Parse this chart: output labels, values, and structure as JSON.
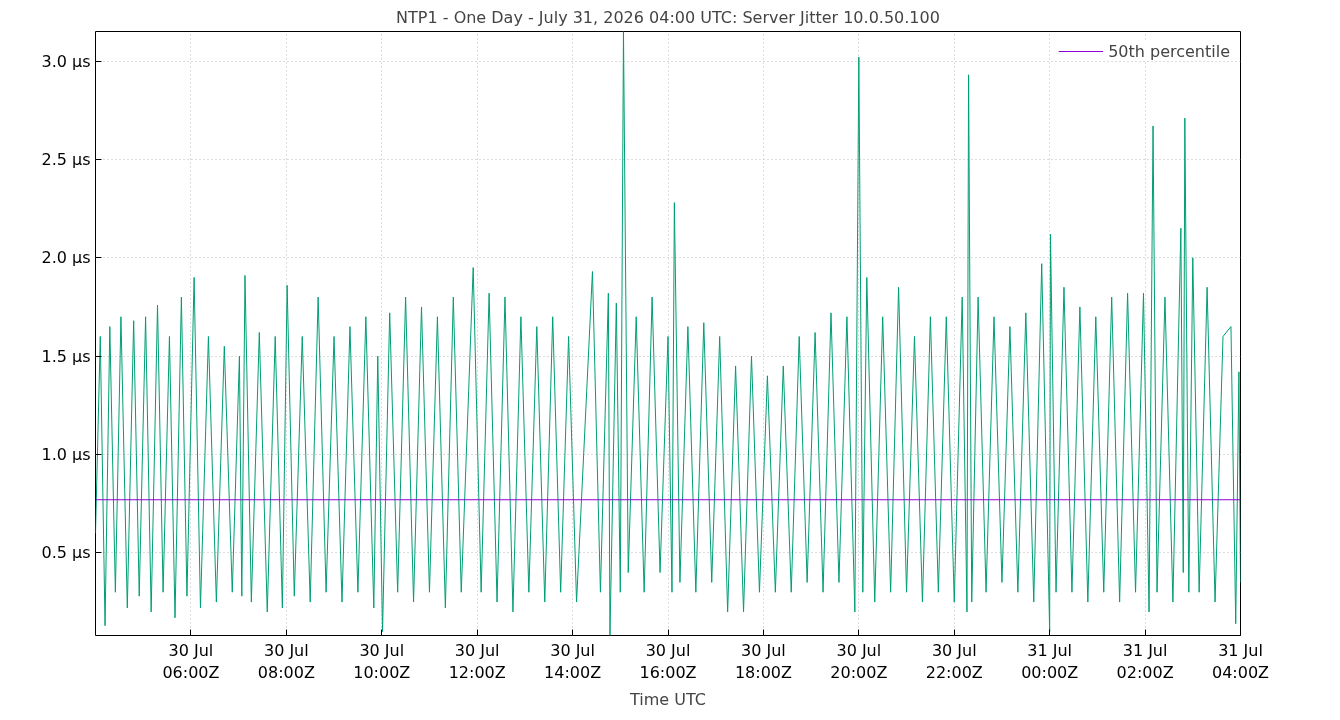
{
  "chart_data": {
    "type": "line",
    "title": "NTP1 - One Day - July 31, 2026 04:00 UTC: Server Jitter 10.0.50.100",
    "xlabel": "Time UTC",
    "xlim": [
      "2026-07-30T04:00",
      "2026-07-31T04:00"
    ],
    "xticks": [
      {
        "value": "2026-07-30T06:00",
        "label": "30 Jul\n06:00Z"
      },
      {
        "value": "2026-07-30T08:00",
        "label": "30 Jul\n08:00Z"
      },
      {
        "value": "2026-07-30T10:00",
        "label": "30 Jul\n10:00Z"
      },
      {
        "value": "2026-07-30T12:00",
        "label": "30 Jul\n12:00Z"
      },
      {
        "value": "2026-07-30T14:00",
        "label": "30 Jul\n14:00Z"
      },
      {
        "value": "2026-07-30T16:00",
        "label": "30 Jul\n16:00Z"
      },
      {
        "value": "2026-07-30T18:00",
        "label": "30 Jul\n18:00Z"
      },
      {
        "value": "2026-07-30T20:00",
        "label": "30 Jul\n20:00Z"
      },
      {
        "value": "2026-07-30T22:00",
        "label": "30 Jul\n22:00Z"
      },
      {
        "value": "2026-07-31T00:00",
        "label": "31 Jul\n00:00Z"
      },
      {
        "value": "2026-07-31T02:00",
        "label": "31 Jul\n02:00Z"
      },
      {
        "value": "2026-07-31T04:00",
        "label": "31 Jul\n04:00Z"
      }
    ],
    "ylim": [
      0.08,
      3.15
    ],
    "yticks": [
      {
        "value": 0.5,
        "label": "0.5 µs"
      },
      {
        "value": 1.0,
        "label": "1.0 µs"
      },
      {
        "value": 1.5,
        "label": "1.5 µs"
      },
      {
        "value": 2.0,
        "label": "2.0 µs"
      },
      {
        "value": 2.5,
        "label": "2.5 µs"
      },
      {
        "value": 3.0,
        "label": "3.0 µs"
      }
    ],
    "grid": true,
    "legend": "top right",
    "line_style": "solid",
    "series": [
      {
        "color": "#009e73",
        "x": [
          "2026-07-30T04:00",
          "2026-07-30T04:06",
          "2026-07-30T04:12",
          "2026-07-30T04:18",
          "2026-07-30T04:25",
          "2026-07-30T04:32",
          "2026-07-30T04:40",
          "2026-07-30T04:48",
          "2026-07-30T04:55",
          "2026-07-30T05:03",
          "2026-07-30T05:10",
          "2026-07-30T05:18",
          "2026-07-30T05:25",
          "2026-07-30T05:33",
          "2026-07-30T05:40",
          "2026-07-30T05:48",
          "2026-07-30T05:55",
          "2026-07-30T06:04",
          "2026-07-30T06:12",
          "2026-07-30T06:22",
          "2026-07-30T06:32",
          "2026-07-30T06:42",
          "2026-07-30T06:52",
          "2026-07-30T07:01",
          "2026-07-30T07:04",
          "2026-07-30T07:08",
          "2026-07-30T07:16",
          "2026-07-30T07:26",
          "2026-07-30T07:36",
          "2026-07-30T07:46",
          "2026-07-30T07:55",
          "2026-07-30T08:01",
          "2026-07-30T08:10",
          "2026-07-30T08:20",
          "2026-07-30T08:30",
          "2026-07-30T08:40",
          "2026-07-30T08:50",
          "2026-07-30T09:00",
          "2026-07-30T09:10",
          "2026-07-30T09:20",
          "2026-07-30T09:30",
          "2026-07-30T09:40",
          "2026-07-30T09:50",
          "2026-07-30T09:55",
          "2026-07-30T10:01",
          "2026-07-30T10:10",
          "2026-07-30T10:20",
          "2026-07-30T10:30",
          "2026-07-30T10:40",
          "2026-07-30T10:50",
          "2026-07-30T11:00",
          "2026-07-30T11:10",
          "2026-07-30T11:20",
          "2026-07-30T11:30",
          "2026-07-30T11:40",
          "2026-07-30T11:55",
          "2026-07-30T12:05",
          "2026-07-30T12:15",
          "2026-07-30T12:25",
          "2026-07-30T12:35",
          "2026-07-30T12:45",
          "2026-07-30T12:55",
          "2026-07-30T13:05",
          "2026-07-30T13:15",
          "2026-07-30T13:25",
          "2026-07-30T13:35",
          "2026-07-30T13:45",
          "2026-07-30T13:55",
          "2026-07-30T14:05",
          "2026-07-30T14:25",
          "2026-07-30T14:35",
          "2026-07-30T14:45",
          "2026-07-30T14:47",
          "2026-07-30T14:55",
          "2026-07-30T15:00",
          "2026-07-30T15:04",
          "2026-07-30T15:10",
          "2026-07-30T15:20",
          "2026-07-30T15:30",
          "2026-07-30T15:40",
          "2026-07-30T15:50",
          "2026-07-30T16:00",
          "2026-07-30T16:05",
          "2026-07-30T16:08",
          "2026-07-30T16:15",
          "2026-07-30T16:25",
          "2026-07-30T16:35",
          "2026-07-30T16:45",
          "2026-07-30T16:55",
          "2026-07-30T17:05",
          "2026-07-30T17:15",
          "2026-07-30T17:25",
          "2026-07-30T17:35",
          "2026-07-30T17:45",
          "2026-07-30T17:55",
          "2026-07-30T18:05",
          "2026-07-30T18:15",
          "2026-07-30T18:25",
          "2026-07-30T18:35",
          "2026-07-30T18:45",
          "2026-07-30T18:55",
          "2026-07-30T19:05",
          "2026-07-30T19:15",
          "2026-07-30T19:25",
          "2026-07-30T19:35",
          "2026-07-30T19:45",
          "2026-07-30T19:55",
          "2026-07-30T20:00",
          "2026-07-30T20:05",
          "2026-07-30T20:10",
          "2026-07-30T20:20",
          "2026-07-30T20:30",
          "2026-07-30T20:40",
          "2026-07-30T20:50",
          "2026-07-30T21:00",
          "2026-07-30T21:10",
          "2026-07-30T21:20",
          "2026-07-30T21:30",
          "2026-07-30T21:40",
          "2026-07-30T21:50",
          "2026-07-30T22:00",
          "2026-07-30T22:10",
          "2026-07-30T22:16",
          "2026-07-30T22:18",
          "2026-07-30T22:22",
          "2026-07-30T22:30",
          "2026-07-30T22:40",
          "2026-07-30T22:50",
          "2026-07-30T23:00",
          "2026-07-30T23:10",
          "2026-07-30T23:20",
          "2026-07-30T23:30",
          "2026-07-30T23:40",
          "2026-07-30T23:50",
          "2026-07-31T00:00",
          "2026-07-31T00:01",
          "2026-07-31T00:08",
          "2026-07-31T00:18",
          "2026-07-31T00:28",
          "2026-07-31T00:38",
          "2026-07-31T00:48",
          "2026-07-31T00:58",
          "2026-07-31T01:08",
          "2026-07-31T01:18",
          "2026-07-31T01:28",
          "2026-07-31T01:38",
          "2026-07-31T01:48",
          "2026-07-31T01:58",
          "2026-07-31T02:05",
          "2026-07-31T02:10",
          "2026-07-31T02:15",
          "2026-07-31T02:25",
          "2026-07-31T02:35",
          "2026-07-31T02:45",
          "2026-07-31T02:48",
          "2026-07-31T02:50",
          "2026-07-31T02:55",
          "2026-07-31T03:00",
          "2026-07-31T03:08",
          "2026-07-31T03:18",
          "2026-07-31T03:28",
          "2026-07-31T03:38",
          "2026-07-31T03:48",
          "2026-07-31T03:54",
          "2026-07-31T03:58",
          "2026-07-31T04:00"
        ],
        "values": [
          0.6,
          1.6,
          0.13,
          1.65,
          0.3,
          1.7,
          0.22,
          1.68,
          0.28,
          1.7,
          0.2,
          1.76,
          0.3,
          1.6,
          0.17,
          1.8,
          0.28,
          1.9,
          0.22,
          1.6,
          0.25,
          1.55,
          0.3,
          1.5,
          0.28,
          1.91,
          0.25,
          1.62,
          0.2,
          1.6,
          0.22,
          1.86,
          0.28,
          1.6,
          0.25,
          1.8,
          0.3,
          1.6,
          0.25,
          1.65,
          0.3,
          1.7,
          0.22,
          1.5,
          0.1,
          1.72,
          0.3,
          1.8,
          0.25,
          1.75,
          0.3,
          1.7,
          0.22,
          1.8,
          0.3,
          1.95,
          0.3,
          1.82,
          0.25,
          1.8,
          0.2,
          1.7,
          0.3,
          1.65,
          0.25,
          1.7,
          0.3,
          1.6,
          0.25,
          1.93,
          0.3,
          1.82,
          0.08,
          1.77,
          0.3,
          3.15,
          0.4,
          1.7,
          0.3,
          1.8,
          0.4,
          1.6,
          0.3,
          2.28,
          0.35,
          1.65,
          0.3,
          1.67,
          0.35,
          1.6,
          0.2,
          1.45,
          0.2,
          1.5,
          0.3,
          1.4,
          0.3,
          1.45,
          0.3,
          1.6,
          0.35,
          1.62,
          0.3,
          1.72,
          0.35,
          1.7,
          0.2,
          3.02,
          0.3,
          1.9,
          0.25,
          1.7,
          0.3,
          1.85,
          0.3,
          1.6,
          0.25,
          1.7,
          0.3,
          1.7,
          0.25,
          1.8,
          0.2,
          2.93,
          0.25,
          1.8,
          0.3,
          1.7,
          0.35,
          1.65,
          0.3,
          1.72,
          0.25,
          1.97,
          0.1,
          2.12,
          0.3,
          1.85,
          0.3,
          1.75,
          0.25,
          1.7,
          0.3,
          1.8,
          0.25,
          1.82,
          0.3,
          1.82,
          0.2,
          2.67,
          0.3,
          1.8,
          0.25,
          2.15,
          0.4,
          2.71,
          0.3,
          2.0,
          0.3,
          1.85,
          0.25,
          1.6,
          1.65,
          0.14,
          1.42,
          0.35
        ]
      },
      {
        "name": "50th percentile",
        "color": "#9400d3",
        "x": [
          "2026-07-30T04:00",
          "2026-07-31T04:00"
        ],
        "values": [
          0.77,
          0.77
        ]
      }
    ]
  }
}
